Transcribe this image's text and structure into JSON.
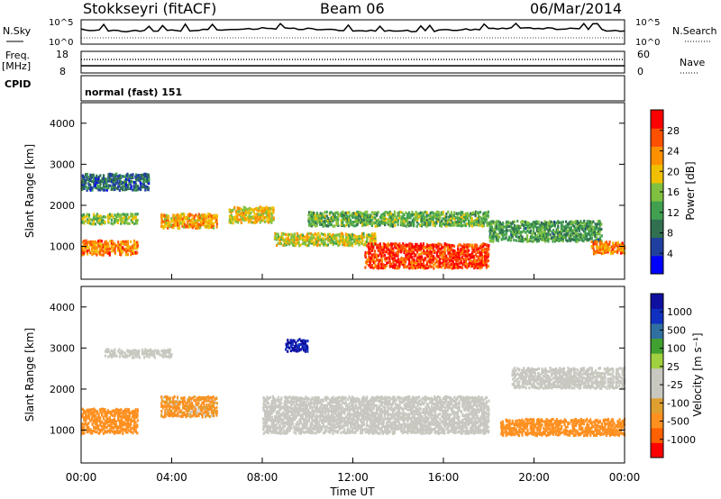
{
  "header": {
    "station": "Stokkseyri (fitACF)",
    "beam": "Beam 06",
    "date": "06/Mar/2014"
  },
  "top_panels": {
    "nsky_label": "N.Sky",
    "nsearch_label": "N.Search",
    "noise_ticks_left": [
      "10^5",
      "10^0"
    ],
    "noise_ticks_right": [
      "10^5",
      "10^0"
    ],
    "freq_label": "Freq.",
    "freq_unit": "[MHz]",
    "freq_ticks": [
      "18",
      "8"
    ],
    "nave_label": "Nave",
    "nave_ticks": [
      "60",
      "0"
    ],
    "cpid_label": "CPID",
    "cpid_value": "normal (fast) 151"
  },
  "colors": {
    "power_scale": [
      "#0000ff",
      "#2040a0",
      "#307050",
      "#40a050",
      "#80c040",
      "#f0c000",
      "#ff9000",
      "#ff5000",
      "#ff0000"
    ],
    "velocity_scale": [
      "#ff0000",
      "#ff6000",
      "#ff9020",
      "#e0a030",
      "#c8c8c0",
      "#c8c8c0",
      "#a0d040",
      "#40a030",
      "#3070a0",
      "#1030c0",
      "#1010a0"
    ],
    "ground_scatter": "#c8c8c0"
  },
  "chart_data": [
    {
      "type": "heatmap",
      "panel": "power",
      "ylabel": "Slant Range [km]",
      "ylim": [
        200,
        4500
      ],
      "yticks": [
        "1000",
        "2000",
        "3000",
        "4000"
      ],
      "colorbar_label": "Power [dB]",
      "colorbar_ticks": [
        "4",
        "8",
        "12",
        "16",
        "20",
        "24",
        "28"
      ],
      "colorbar_range": [
        0,
        32
      ],
      "x_range_hours": [
        0,
        24
      ],
      "features": [
        {
          "t_start": 0.0,
          "t_end": 2.5,
          "range_km": 1000,
          "width_km": 350,
          "value": 24
        },
        {
          "t_start": 0.0,
          "t_end": 2.5,
          "range_km": 1700,
          "width_km": 250,
          "value": 16
        },
        {
          "t_start": 0.0,
          "t_end": 3.0,
          "range_km": 2600,
          "width_km": 400,
          "value": 8
        },
        {
          "t_start": 3.5,
          "t_end": 6.0,
          "range_km": 1650,
          "width_km": 350,
          "value": 22
        },
        {
          "t_start": 6.5,
          "t_end": 8.5,
          "range_km": 1800,
          "width_km": 400,
          "value": 20
        },
        {
          "t_start": 8.5,
          "t_end": 13.0,
          "range_km": 1200,
          "width_km": 300,
          "value": 18
        },
        {
          "t_start": 12.5,
          "t_end": 18.0,
          "range_km": 800,
          "width_km": 600,
          "value": 28
        },
        {
          "t_start": 10.0,
          "t_end": 18.0,
          "range_km": 1700,
          "width_km": 350,
          "value": 14
        },
        {
          "t_start": 18.0,
          "t_end": 23.0,
          "range_km": 1400,
          "width_km": 500,
          "value": 12
        },
        {
          "t_start": 22.5,
          "t_end": 24.0,
          "range_km": 1000,
          "width_km": 300,
          "value": 24
        }
      ]
    },
    {
      "type": "heatmap",
      "panel": "velocity",
      "ylabel": "Slant Range [km]",
      "ylim": [
        200,
        4500
      ],
      "yticks": [
        "1000",
        "2000",
        "3000",
        "4000"
      ],
      "xlabel": "Time UT",
      "xticks": [
        "00:00",
        "04:00",
        "08:00",
        "12:00",
        "16:00",
        "20:00",
        "00:00"
      ],
      "colorbar_label": "Velocity [m s⁻¹]",
      "colorbar_ticks": [
        "1000",
        "500",
        "100",
        "25",
        "-25",
        "-100",
        "-500",
        "-1000"
      ],
      "features": [
        {
          "t_start": 0.0,
          "t_end": 2.5,
          "range_km": 1250,
          "width_km": 600,
          "value": -250
        },
        {
          "t_start": 3.5,
          "t_end": 6.0,
          "range_km": 1600,
          "width_km": 500,
          "value": -150
        },
        {
          "t_start": 1.0,
          "t_end": 4.0,
          "range_km": 2900,
          "width_km": 200,
          "value": 0
        },
        {
          "t_start": 9.0,
          "t_end": 10.0,
          "range_km": 3100,
          "width_km": 300,
          "value": 800
        },
        {
          "t_start": 8.0,
          "t_end": 18.0,
          "range_km": 1400,
          "width_km": 900,
          "value": 0
        },
        {
          "t_start": 18.5,
          "t_end": 24.0,
          "range_km": 1100,
          "width_km": 400,
          "value": -300
        },
        {
          "t_start": 19.0,
          "t_end": 24.0,
          "range_km": 2300,
          "width_km": 500,
          "value": 0
        }
      ]
    }
  ]
}
